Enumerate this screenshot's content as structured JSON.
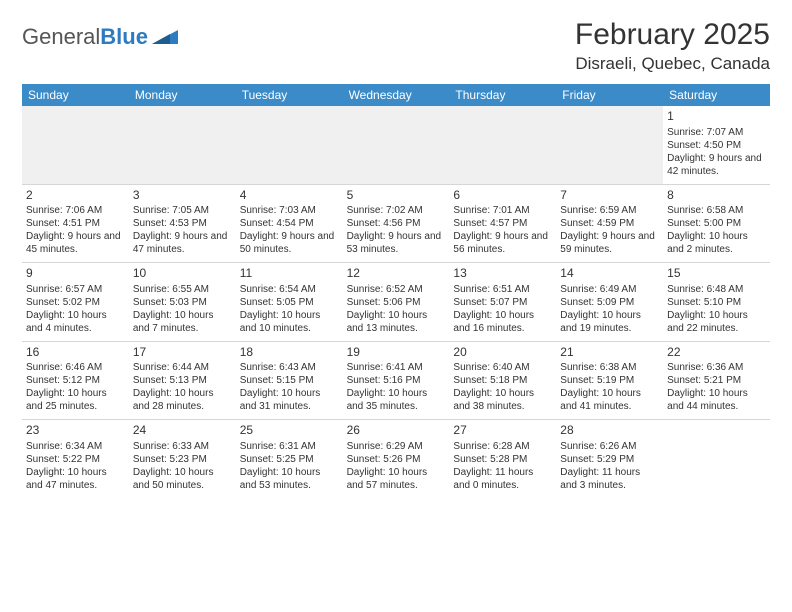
{
  "brand": {
    "part1": "General",
    "part2": "Blue"
  },
  "title": "February 2025",
  "location": "Disraeli, Quebec, Canada",
  "colors": {
    "header_bg": "#3b8bc9",
    "header_text": "#ffffff",
    "odd_row_bg": "#f0f0f0",
    "divider": "#d6d6d6",
    "text": "#333333",
    "brand_blue": "#2d7bc0"
  },
  "day_headers": [
    "Sunday",
    "Monday",
    "Tuesday",
    "Wednesday",
    "Thursday",
    "Friday",
    "Saturday"
  ],
  "weeks": [
    [
      null,
      null,
      null,
      null,
      null,
      null,
      {
        "n": "1",
        "sr": "Sunrise: 7:07 AM",
        "ss": "Sunset: 4:50 PM",
        "dl": "Daylight: 9 hours and 42 minutes."
      }
    ],
    [
      {
        "n": "2",
        "sr": "Sunrise: 7:06 AM",
        "ss": "Sunset: 4:51 PM",
        "dl": "Daylight: 9 hours and 45 minutes."
      },
      {
        "n": "3",
        "sr": "Sunrise: 7:05 AM",
        "ss": "Sunset: 4:53 PM",
        "dl": "Daylight: 9 hours and 47 minutes."
      },
      {
        "n": "4",
        "sr": "Sunrise: 7:03 AM",
        "ss": "Sunset: 4:54 PM",
        "dl": "Daylight: 9 hours and 50 minutes."
      },
      {
        "n": "5",
        "sr": "Sunrise: 7:02 AM",
        "ss": "Sunset: 4:56 PM",
        "dl": "Daylight: 9 hours and 53 minutes."
      },
      {
        "n": "6",
        "sr": "Sunrise: 7:01 AM",
        "ss": "Sunset: 4:57 PM",
        "dl": "Daylight: 9 hours and 56 minutes."
      },
      {
        "n": "7",
        "sr": "Sunrise: 6:59 AM",
        "ss": "Sunset: 4:59 PM",
        "dl": "Daylight: 9 hours and 59 minutes."
      },
      {
        "n": "8",
        "sr": "Sunrise: 6:58 AM",
        "ss": "Sunset: 5:00 PM",
        "dl": "Daylight: 10 hours and 2 minutes."
      }
    ],
    [
      {
        "n": "9",
        "sr": "Sunrise: 6:57 AM",
        "ss": "Sunset: 5:02 PM",
        "dl": "Daylight: 10 hours and 4 minutes."
      },
      {
        "n": "10",
        "sr": "Sunrise: 6:55 AM",
        "ss": "Sunset: 5:03 PM",
        "dl": "Daylight: 10 hours and 7 minutes."
      },
      {
        "n": "11",
        "sr": "Sunrise: 6:54 AM",
        "ss": "Sunset: 5:05 PM",
        "dl": "Daylight: 10 hours and 10 minutes."
      },
      {
        "n": "12",
        "sr": "Sunrise: 6:52 AM",
        "ss": "Sunset: 5:06 PM",
        "dl": "Daylight: 10 hours and 13 minutes."
      },
      {
        "n": "13",
        "sr": "Sunrise: 6:51 AM",
        "ss": "Sunset: 5:07 PM",
        "dl": "Daylight: 10 hours and 16 minutes."
      },
      {
        "n": "14",
        "sr": "Sunrise: 6:49 AM",
        "ss": "Sunset: 5:09 PM",
        "dl": "Daylight: 10 hours and 19 minutes."
      },
      {
        "n": "15",
        "sr": "Sunrise: 6:48 AM",
        "ss": "Sunset: 5:10 PM",
        "dl": "Daylight: 10 hours and 22 minutes."
      }
    ],
    [
      {
        "n": "16",
        "sr": "Sunrise: 6:46 AM",
        "ss": "Sunset: 5:12 PM",
        "dl": "Daylight: 10 hours and 25 minutes."
      },
      {
        "n": "17",
        "sr": "Sunrise: 6:44 AM",
        "ss": "Sunset: 5:13 PM",
        "dl": "Daylight: 10 hours and 28 minutes."
      },
      {
        "n": "18",
        "sr": "Sunrise: 6:43 AM",
        "ss": "Sunset: 5:15 PM",
        "dl": "Daylight: 10 hours and 31 minutes."
      },
      {
        "n": "19",
        "sr": "Sunrise: 6:41 AM",
        "ss": "Sunset: 5:16 PM",
        "dl": "Daylight: 10 hours and 35 minutes."
      },
      {
        "n": "20",
        "sr": "Sunrise: 6:40 AM",
        "ss": "Sunset: 5:18 PM",
        "dl": "Daylight: 10 hours and 38 minutes."
      },
      {
        "n": "21",
        "sr": "Sunrise: 6:38 AM",
        "ss": "Sunset: 5:19 PM",
        "dl": "Daylight: 10 hours and 41 minutes."
      },
      {
        "n": "22",
        "sr": "Sunrise: 6:36 AM",
        "ss": "Sunset: 5:21 PM",
        "dl": "Daylight: 10 hours and 44 minutes."
      }
    ],
    [
      {
        "n": "23",
        "sr": "Sunrise: 6:34 AM",
        "ss": "Sunset: 5:22 PM",
        "dl": "Daylight: 10 hours and 47 minutes."
      },
      {
        "n": "24",
        "sr": "Sunrise: 6:33 AM",
        "ss": "Sunset: 5:23 PM",
        "dl": "Daylight: 10 hours and 50 minutes."
      },
      {
        "n": "25",
        "sr": "Sunrise: 6:31 AM",
        "ss": "Sunset: 5:25 PM",
        "dl": "Daylight: 10 hours and 53 minutes."
      },
      {
        "n": "26",
        "sr": "Sunrise: 6:29 AM",
        "ss": "Sunset: 5:26 PM",
        "dl": "Daylight: 10 hours and 57 minutes."
      },
      {
        "n": "27",
        "sr": "Sunrise: 6:28 AM",
        "ss": "Sunset: 5:28 PM",
        "dl": "Daylight: 11 hours and 0 minutes."
      },
      {
        "n": "28",
        "sr": "Sunrise: 6:26 AM",
        "ss": "Sunset: 5:29 PM",
        "dl": "Daylight: 11 hours and 3 minutes."
      },
      null
    ]
  ]
}
